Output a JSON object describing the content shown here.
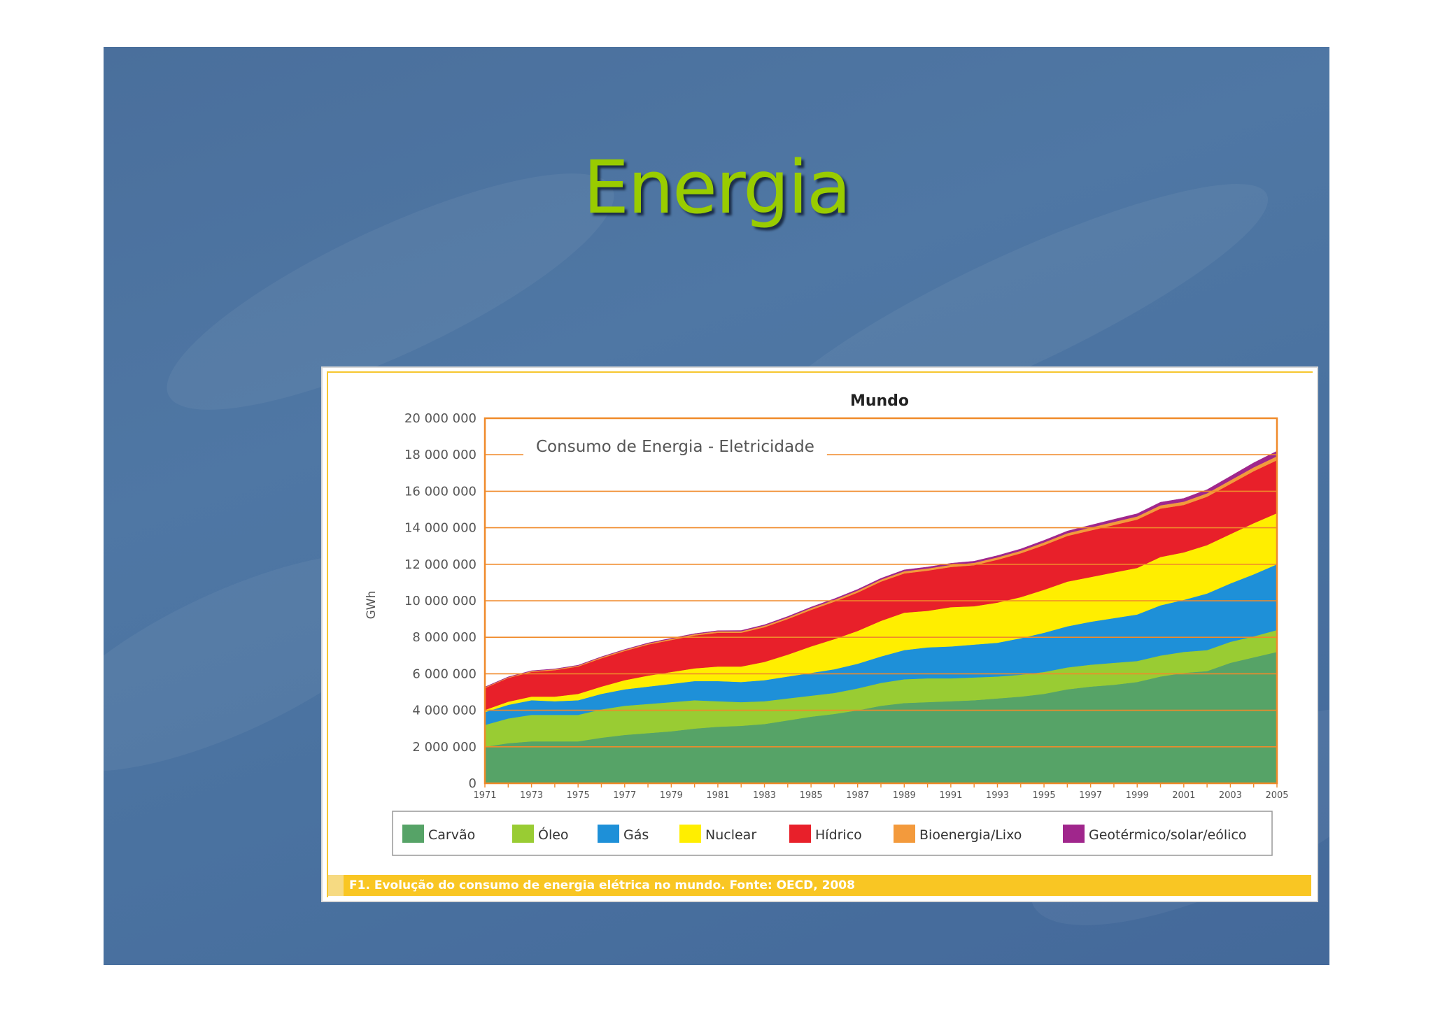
{
  "slide": {
    "title": "Energia",
    "background_color": "#4a6f9c",
    "title_color": "#99cc00"
  },
  "figure": {
    "caption": "F1. Evolução do consumo de energia elétrica no mundo. Fonte: OECD, 2008"
  },
  "chart_data": {
    "type": "area",
    "stacked": true,
    "title": "Mundo",
    "annotation": "Consumo de Energia - Eletricidade",
    "xlabel": "",
    "ylabel": "GWh",
    "ylim": [
      0,
      20000000
    ],
    "yticks": [
      0,
      2000000,
      4000000,
      6000000,
      8000000,
      10000000,
      12000000,
      14000000,
      16000000,
      18000000,
      20000000
    ],
    "ytick_labels": [
      "0",
      "2 000 000",
      "4 000 000",
      "6 000 000",
      "8 000 000",
      "10 000 000",
      "12 000 000",
      "14 000 000",
      "16 000 000",
      "18 000 000",
      "20 000 000"
    ],
    "xlim": [
      1971,
      2005
    ],
    "xtick_labels": [
      "1971",
      "1973",
      "1975",
      "1977",
      "1979",
      "1981",
      "1983",
      "1985",
      "1987",
      "1989",
      "1991",
      "1993",
      "1995",
      "1997",
      "1999",
      "2001",
      "2003",
      "2005"
    ],
    "grid": true,
    "legend_position": "bottom",
    "x": [
      1971,
      1972,
      1973,
      1974,
      1975,
      1976,
      1977,
      1978,
      1979,
      1980,
      1981,
      1982,
      1983,
      1984,
      1985,
      1986,
      1987,
      1988,
      1989,
      1990,
      1991,
      1992,
      1993,
      1994,
      1995,
      1996,
      1997,
      1998,
      1999,
      2000,
      2001,
      2002,
      2003,
      2004,
      2005
    ],
    "series": [
      {
        "name": "Carvão",
        "color": "#56a367",
        "values": [
          2000000,
          2200000,
          2300000,
          2300000,
          2300000,
          2500000,
          2650000,
          2750000,
          2850000,
          3000000,
          3100000,
          3150000,
          3250000,
          3450000,
          3650000,
          3800000,
          4000000,
          4250000,
          4400000,
          4450000,
          4500000,
          4550000,
          4650000,
          4750000,
          4900000,
          5150000,
          5300000,
          5400000,
          5550000,
          5850000,
          6050000,
          6150000,
          6600000,
          6900000,
          7200000
        ]
      },
      {
        "name": "Óleo",
        "color": "#99cc33",
        "values": [
          1200000,
          1350000,
          1450000,
          1450000,
          1450000,
          1550000,
          1600000,
          1600000,
          1600000,
          1550000,
          1400000,
          1300000,
          1250000,
          1200000,
          1150000,
          1150000,
          1200000,
          1250000,
          1300000,
          1300000,
          1250000,
          1250000,
          1200000,
          1200000,
          1200000,
          1200000,
          1200000,
          1200000,
          1150000,
          1150000,
          1150000,
          1150000,
          1150000,
          1150000,
          1200000
        ]
      },
      {
        "name": "Gás",
        "color": "#1e90d8",
        "values": [
          700000,
          750000,
          800000,
          750000,
          800000,
          850000,
          900000,
          950000,
          1000000,
          1050000,
          1100000,
          1100000,
          1150000,
          1200000,
          1250000,
          1300000,
          1350000,
          1450000,
          1600000,
          1700000,
          1750000,
          1800000,
          1850000,
          2000000,
          2150000,
          2250000,
          2350000,
          2450000,
          2550000,
          2750000,
          2850000,
          3100000,
          3200000,
          3400000,
          3600000
        ]
      },
      {
        "name": "Nuclear",
        "color": "#ffee00",
        "values": [
          120000,
          170000,
          200000,
          250000,
          350000,
          400000,
          500000,
          600000,
          650000,
          700000,
          800000,
          850000,
          1000000,
          1200000,
          1450000,
          1650000,
          1800000,
          1950000,
          2050000,
          2000000,
          2150000,
          2100000,
          2200000,
          2250000,
          2350000,
          2450000,
          2450000,
          2500000,
          2550000,
          2650000,
          2600000,
          2650000,
          2700000,
          2800000,
          2800000
        ]
      },
      {
        "name": "Hídrico",
        "color": "#e8202a",
        "values": [
          1200000,
          1300000,
          1350000,
          1450000,
          1500000,
          1550000,
          1600000,
          1700000,
          1750000,
          1800000,
          1850000,
          1850000,
          1900000,
          1950000,
          2000000,
          2050000,
          2100000,
          2150000,
          2150000,
          2200000,
          2200000,
          2250000,
          2350000,
          2400000,
          2450000,
          2500000,
          2550000,
          2600000,
          2650000,
          2650000,
          2600000,
          2650000,
          2750000,
          2850000,
          2900000
        ]
      },
      {
        "name": "Bioenergia/Lixo",
        "color": "#f39a3c",
        "values": [
          40000,
          40000,
          50000,
          50000,
          50000,
          60000,
          60000,
          60000,
          70000,
          70000,
          80000,
          80000,
          90000,
          90000,
          100000,
          100000,
          110000,
          110000,
          120000,
          120000,
          120000,
          130000,
          130000,
          140000,
          150000,
          150000,
          160000,
          170000,
          170000,
          180000,
          180000,
          190000,
          200000,
          210000,
          220000
        ]
      },
      {
        "name": "Geotérmico/solar/eólico",
        "color": "#a0268c",
        "values": [
          20000,
          20000,
          20000,
          20000,
          20000,
          25000,
          25000,
          30000,
          30000,
          30000,
          35000,
          40000,
          45000,
          50000,
          55000,
          60000,
          65000,
          70000,
          75000,
          80000,
          85000,
          90000,
          95000,
          100000,
          110000,
          120000,
          130000,
          140000,
          150000,
          170000,
          180000,
          200000,
          220000,
          250000,
          280000
        ]
      }
    ]
  }
}
